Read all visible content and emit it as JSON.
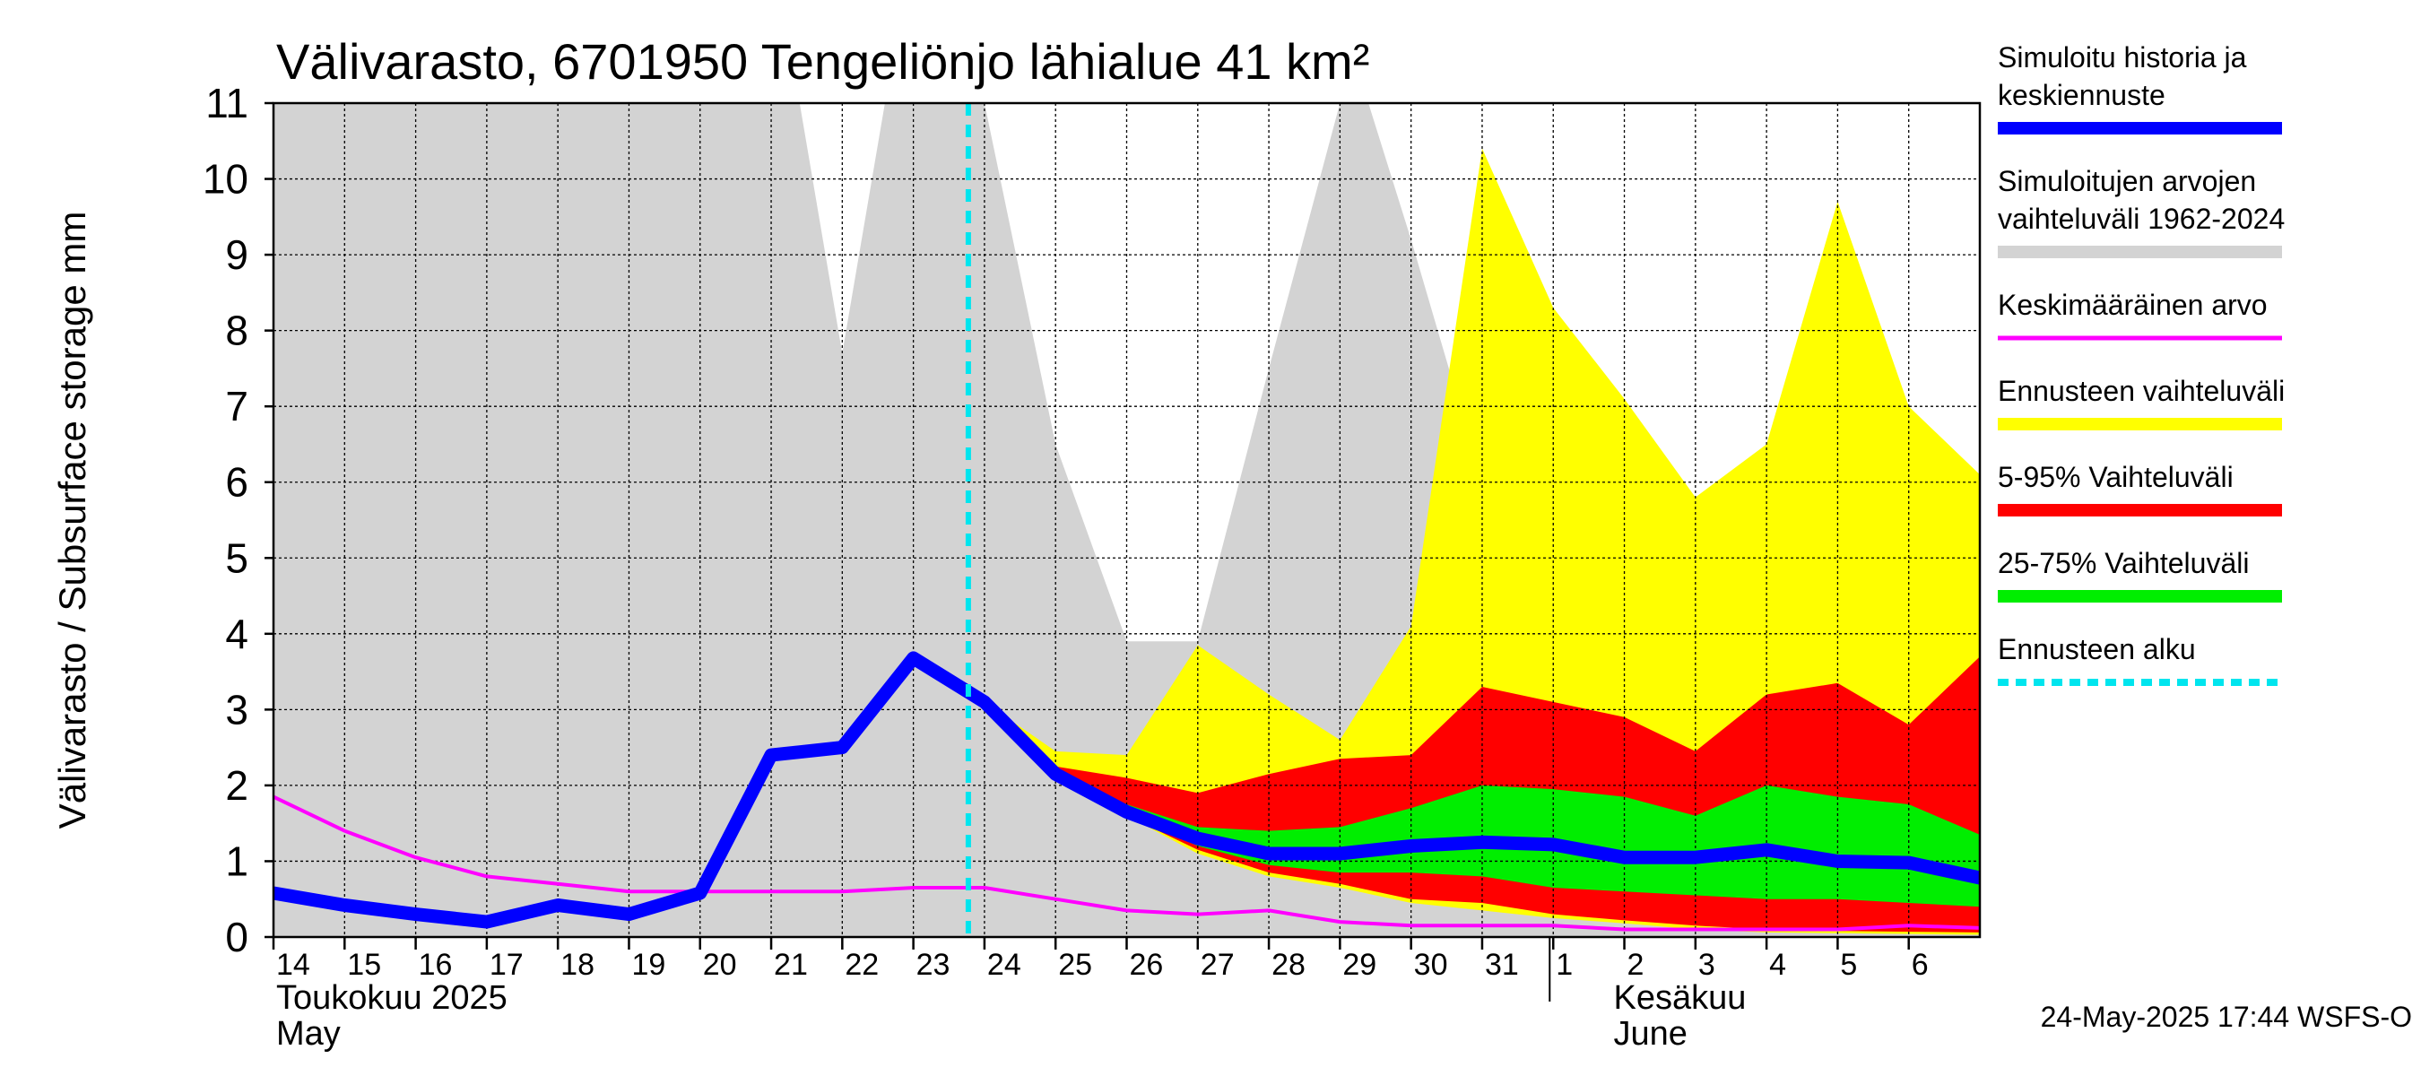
{
  "chart_data": {
    "type": "area",
    "title": "Välivarasto, 6701950 Tengeliönjo lähialue 41 km²",
    "ylabel": "Välivarasto / Subsurface storage  mm",
    "ylim": [
      0,
      11
    ],
    "yticks": [
      0,
      1,
      2,
      3,
      4,
      5,
      6,
      7,
      8,
      9,
      10,
      11
    ],
    "grid": true,
    "x_labels": [
      "14",
      "15",
      "16",
      "17",
      "18",
      "19",
      "20",
      "21",
      "22",
      "23",
      "24",
      "25",
      "26",
      "27",
      "28",
      "29",
      "30",
      "31",
      "1",
      "2",
      "3",
      "4",
      "5",
      "6"
    ],
    "month_labels": [
      {
        "line1": "Toukokuu  2025",
        "line2": "May",
        "at": "14"
      },
      {
        "line1": "Kesäkuu",
        "line2": "June",
        "at": "2"
      }
    ],
    "forecast_start": "24",
    "series": [
      {
        "name": "Simuloitujen arvojen vaihteluväli 1962-2024",
        "kind": "range",
        "color": "#d3d3d3",
        "x": [
          14,
          15,
          16,
          17,
          18,
          19,
          20,
          21,
          21.4,
          22,
          22.6,
          23,
          24,
          25,
          26,
          27,
          28,
          29,
          29.4,
          30,
          31,
          32,
          33,
          34,
          35,
          36,
          37,
          38
        ],
        "lower": [
          0,
          0,
          0,
          0,
          0,
          0,
          0,
          0,
          0,
          0,
          0,
          0,
          0,
          0,
          0,
          0,
          0,
          0,
          0,
          0,
          0,
          0,
          0,
          0,
          0,
          0,
          0,
          0
        ],
        "upper": [
          11,
          11,
          11,
          11,
          11,
          11,
          11,
          11,
          11,
          7.7,
          11,
          11,
          11,
          6.5,
          3.9,
          3.9,
          7.5,
          11,
          11,
          9.2,
          6.0,
          4.8,
          3.2,
          2.9,
          4.5,
          3.1,
          3.8,
          4.2
        ]
      },
      {
        "name": "Ennusteen vaihteluväli",
        "kind": "range",
        "color": "#ffff00",
        "x": [
          24,
          25,
          26,
          27,
          28,
          29,
          30,
          31,
          32,
          33,
          34,
          35,
          36,
          37,
          38
        ],
        "lower": [
          3.1,
          2.2,
          1.6,
          1.1,
          0.8,
          0.65,
          0.45,
          0.35,
          0.25,
          0.18,
          0.1,
          0.06,
          0.05,
          0.04,
          0.03
        ],
        "upper": [
          3.1,
          2.45,
          2.4,
          3.85,
          3.2,
          2.6,
          4.1,
          10.4,
          8.3,
          7.1,
          5.8,
          6.5,
          9.7,
          7.0,
          6.1
        ]
      },
      {
        "name": "5-95% Vaihteluväli",
        "kind": "range",
        "color": "#ff0000",
        "x": [
          24,
          25,
          26,
          27,
          28,
          29,
          30,
          31,
          32,
          33,
          34,
          35,
          36,
          37,
          38
        ],
        "lower": [
          3.1,
          2.2,
          1.6,
          1.15,
          0.85,
          0.7,
          0.5,
          0.45,
          0.3,
          0.22,
          0.15,
          0.1,
          0.08,
          0.07,
          0.06
        ],
        "upper": [
          3.1,
          2.25,
          2.1,
          1.9,
          2.15,
          2.35,
          2.4,
          3.3,
          3.1,
          2.9,
          2.45,
          3.2,
          3.35,
          2.8,
          3.7
        ]
      },
      {
        "name": "25-75% Vaihteluväli",
        "kind": "range",
        "color": "#00ee00",
        "x": [
          24,
          25,
          26,
          27,
          28,
          29,
          30,
          31,
          32,
          33,
          34,
          35,
          36,
          37,
          38
        ],
        "lower": [
          3.1,
          2.2,
          1.6,
          1.2,
          0.95,
          0.85,
          0.85,
          0.8,
          0.65,
          0.6,
          0.55,
          0.5,
          0.5,
          0.45,
          0.4
        ],
        "upper": [
          3.1,
          2.2,
          1.75,
          1.45,
          1.4,
          1.45,
          1.7,
          2.0,
          1.95,
          1.85,
          1.6,
          2.0,
          1.85,
          1.75,
          1.35
        ]
      },
      {
        "name": "Keskimääräinen arvo",
        "kind": "line",
        "color": "#ff00ff",
        "x": [
          14,
          15,
          16,
          17,
          18,
          19,
          20,
          21,
          22,
          23,
          24,
          25,
          26,
          27,
          28,
          29,
          30,
          31,
          32,
          33,
          34,
          35,
          36,
          37,
          38
        ],
        "values": [
          1.85,
          1.4,
          1.05,
          0.8,
          0.7,
          0.6,
          0.6,
          0.6,
          0.6,
          0.65,
          0.65,
          0.5,
          0.35,
          0.3,
          0.35,
          0.2,
          0.15,
          0.15,
          0.15,
          0.1,
          0.1,
          0.1,
          0.1,
          0.15,
          0.12
        ]
      },
      {
        "name": "Simuloitu historia ja keskiennuste",
        "kind": "line",
        "color": "#0000ff",
        "x": [
          14,
          15,
          16,
          17,
          18,
          19,
          20,
          21,
          22,
          23,
          24,
          25,
          26,
          27,
          28,
          29,
          30,
          31,
          32,
          33,
          34,
          35,
          36,
          37,
          38
        ],
        "values": [
          0.58,
          0.42,
          0.3,
          0.2,
          0.42,
          0.3,
          0.58,
          2.4,
          2.5,
          3.68,
          3.1,
          2.15,
          1.65,
          1.3,
          1.1,
          1.1,
          1.2,
          1.25,
          1.22,
          1.05,
          1.05,
          1.15,
          1.0,
          0.98,
          0.78
        ]
      }
    ]
  },
  "legend": [
    {
      "label": "Simuloitu historia ja keskiennuste",
      "lines": [
        "Simuloitu historia ja",
        "keskiennuste"
      ],
      "color": "#0000ff",
      "style": "solid"
    },
    {
      "label": "Simuloitujen arvojen vaihteluväli 1962-2024",
      "lines": [
        "Simuloitujen arvojen",
        "vaihteluväli 1962-2024"
      ],
      "color": "#d3d3d3",
      "style": "solid"
    },
    {
      "label": "Keskimääräinen arvo",
      "lines": [
        "Keskimääräinen arvo"
      ],
      "color": "#ff00ff",
      "style": "solid"
    },
    {
      "label": "Ennusteen vaihteluväli",
      "lines": [
        "Ennusteen vaihteluväli"
      ],
      "color": "#ffff00",
      "style": "solid"
    },
    {
      "label": "5-95% Vaihteluväli",
      "lines": [
        "5-95% Vaihteluväli"
      ],
      "color": "#ff0000",
      "style": "solid"
    },
    {
      "label": "25-75% Vaihteluväli",
      "lines": [
        "25-75% Vaihteluväli"
      ],
      "color": "#00ee00",
      "style": "solid"
    },
    {
      "label": "Ennusteen alku",
      "lines": [
        "Ennusteen alku"
      ],
      "color": "#00e5ee",
      "style": "dashed"
    }
  ],
  "forecast_start_color": "#00e5ee",
  "footer": "24-May-2025 17:44 WSFS-O"
}
